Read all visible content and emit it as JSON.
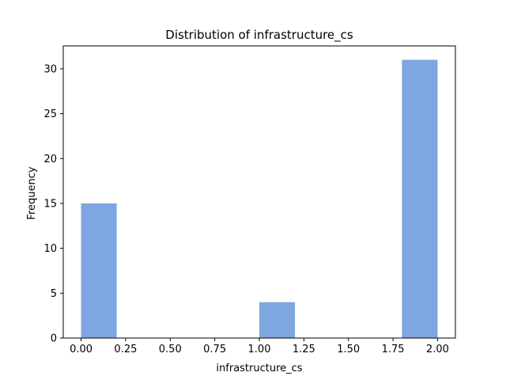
{
  "chart_data": {
    "type": "bar",
    "title": "Distribution of  infrastructure_cs",
    "xlabel": "infrastructure_cs",
    "ylabel": "Frequency",
    "bins": [
      {
        "x0": 0.0,
        "x1": 0.2,
        "value": 15
      },
      {
        "x0": 0.2,
        "x1": 0.4,
        "value": 0
      },
      {
        "x0": 0.4,
        "x1": 0.6,
        "value": 0
      },
      {
        "x0": 0.6,
        "x1": 0.8,
        "value": 0
      },
      {
        "x0": 0.8,
        "x1": 1.0,
        "value": 0
      },
      {
        "x0": 1.0,
        "x1": 1.2,
        "value": 4
      },
      {
        "x0": 1.2,
        "x1": 1.4,
        "value": 0
      },
      {
        "x0": 1.4,
        "x1": 1.6,
        "value": 0
      },
      {
        "x0": 1.6,
        "x1": 1.8,
        "value": 0
      },
      {
        "x0": 1.8,
        "x1": 2.0,
        "value": 31
      }
    ],
    "xlim": [
      -0.1,
      2.1
    ],
    "ylim": [
      0,
      32.55
    ],
    "xticks": [
      0.0,
      0.25,
      0.5,
      0.75,
      1.0,
      1.25,
      1.5,
      1.75,
      2.0
    ],
    "xtick_labels": [
      "0.00",
      "0.25",
      "0.50",
      "0.75",
      "1.00",
      "1.25",
      "1.50",
      "1.75",
      "2.00"
    ],
    "yticks": [
      0,
      5,
      10,
      15,
      20,
      25,
      30
    ],
    "ytick_labels": [
      "0",
      "5",
      "10",
      "15",
      "20",
      "25",
      "30"
    ],
    "bar_color": "#7ea6e0",
    "grid": false,
    "legend": false
  }
}
